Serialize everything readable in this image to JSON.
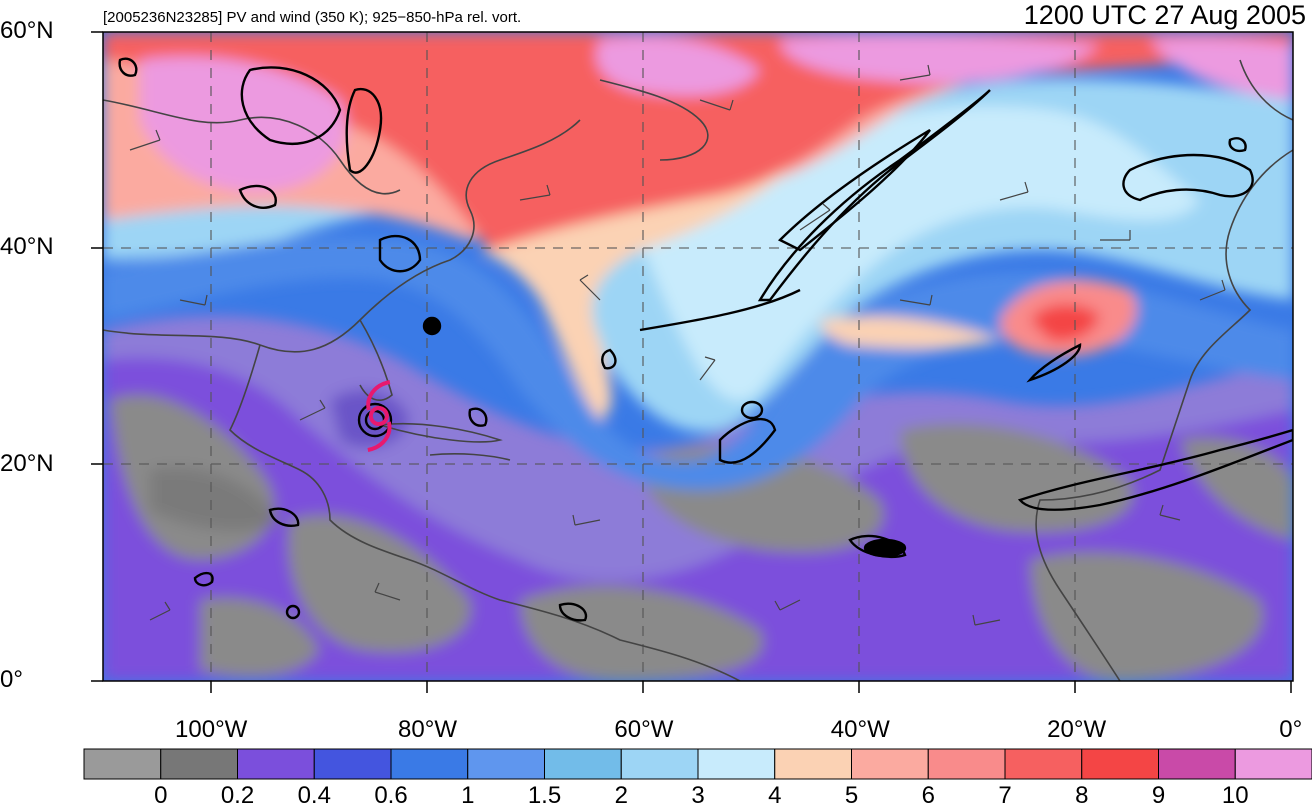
{
  "header": {
    "title_left": "[2005236N23285] PV and wind (350 K); 925−850-hPa rel. vort.",
    "title_right": "1200 UTC 27 Aug 2005"
  },
  "map": {
    "extent": {
      "lon": [
        -110,
        0
      ],
      "lat": [
        0,
        60
      ]
    },
    "lat_labels": [
      {
        "value": 60,
        "label": "60°N"
      },
      {
        "value": 40,
        "label": "40°N"
      },
      {
        "value": 20,
        "label": "20°N"
      },
      {
        "value": 0,
        "label": "0°"
      }
    ],
    "lon_labels": [
      {
        "value": -100,
        "label": "100°W"
      },
      {
        "value": -80,
        "label": "80°W"
      },
      {
        "value": -60,
        "label": "60°W"
      },
      {
        "value": -40,
        "label": "40°W"
      },
      {
        "value": -20,
        "label": "20°W"
      },
      {
        "value": 0,
        "label": "0°"
      }
    ],
    "storm_marker": {
      "lon": -84.5,
      "lat": 24.5,
      "color": "#e8196e",
      "icon": "hurricane-icon"
    }
  },
  "colorbar": {
    "colors": [
      "#9a9a9a",
      "#777777",
      "#7b4fdc",
      "#4455df",
      "#3a7ae6",
      "#5f96ee",
      "#72bce9",
      "#9dd5f5",
      "#c8ebfc",
      "#fbd2b4",
      "#fbaaa0",
      "#f98b8b",
      "#f66060",
      "#f44545",
      "#c94aa8",
      "#ec9ae0"
    ],
    "labels": [
      "0",
      "0.2",
      "0.4",
      "0.6",
      "1",
      "1.5",
      "2",
      "3",
      "4",
      "5",
      "6",
      "7",
      "8",
      "9",
      "10"
    ]
  }
}
